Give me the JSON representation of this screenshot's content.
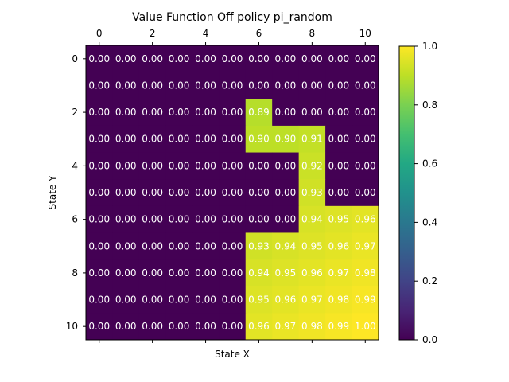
{
  "chart_data": {
    "type": "heatmap",
    "title": "Value Function Off policy pi_random",
    "xlabel": "State X",
    "ylabel": "State Y",
    "x_ticks_top": [
      "0",
      "2",
      "4",
      "6",
      "8",
      "10"
    ],
    "y_ticks": [
      "0",
      "2",
      "4",
      "6",
      "8",
      "10"
    ],
    "colorbar_ticks": [
      "0.0",
      "0.2",
      "0.4",
      "0.6",
      "0.8",
      "1.0"
    ],
    "vmin": 0.0,
    "vmax": 1.0,
    "colormap": "viridis",
    "matrix": [
      [
        0.0,
        0.0,
        0.0,
        0.0,
        0.0,
        0.0,
        0.0,
        0.0,
        0.0,
        0.0,
        0.0
      ],
      [
        0.0,
        0.0,
        0.0,
        0.0,
        0.0,
        0.0,
        0.0,
        0.0,
        0.0,
        0.0,
        0.0
      ],
      [
        0.0,
        0.0,
        0.0,
        0.0,
        0.0,
        0.0,
        0.89,
        0.0,
        0.0,
        0.0,
        0.0
      ],
      [
        0.0,
        0.0,
        0.0,
        0.0,
        0.0,
        0.0,
        0.9,
        0.9,
        0.91,
        0.0,
        0.0
      ],
      [
        0.0,
        0.0,
        0.0,
        0.0,
        0.0,
        0.0,
        0.0,
        0.0,
        0.92,
        0.0,
        0.0
      ],
      [
        0.0,
        0.0,
        0.0,
        0.0,
        0.0,
        0.0,
        0.0,
        0.0,
        0.93,
        0.0,
        0.0
      ],
      [
        0.0,
        0.0,
        0.0,
        0.0,
        0.0,
        0.0,
        0.0,
        0.0,
        0.94,
        0.95,
        0.96
      ],
      [
        0.0,
        0.0,
        0.0,
        0.0,
        0.0,
        0.0,
        0.93,
        0.94,
        0.95,
        0.96,
        0.97
      ],
      [
        0.0,
        0.0,
        0.0,
        0.0,
        0.0,
        0.0,
        0.94,
        0.95,
        0.96,
        0.97,
        0.98
      ],
      [
        0.0,
        0.0,
        0.0,
        0.0,
        0.0,
        0.0,
        0.95,
        0.96,
        0.97,
        0.98,
        0.99
      ],
      [
        0.0,
        0.0,
        0.0,
        0.0,
        0.0,
        0.0,
        0.96,
        0.97,
        0.98,
        0.99,
        1.0
      ]
    ]
  }
}
